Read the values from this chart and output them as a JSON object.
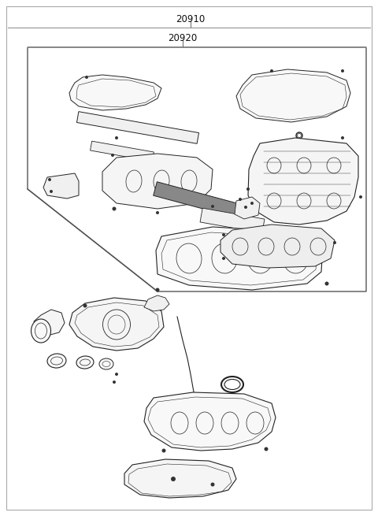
{
  "bg_color": "#ffffff",
  "line_color": "#222222",
  "text_color": "#111111",
  "fig_width": 4.8,
  "fig_height": 6.55,
  "dpi": 100,
  "label_20910": "20910",
  "label_20920": "20920",
  "label_fontsize": 8.5
}
